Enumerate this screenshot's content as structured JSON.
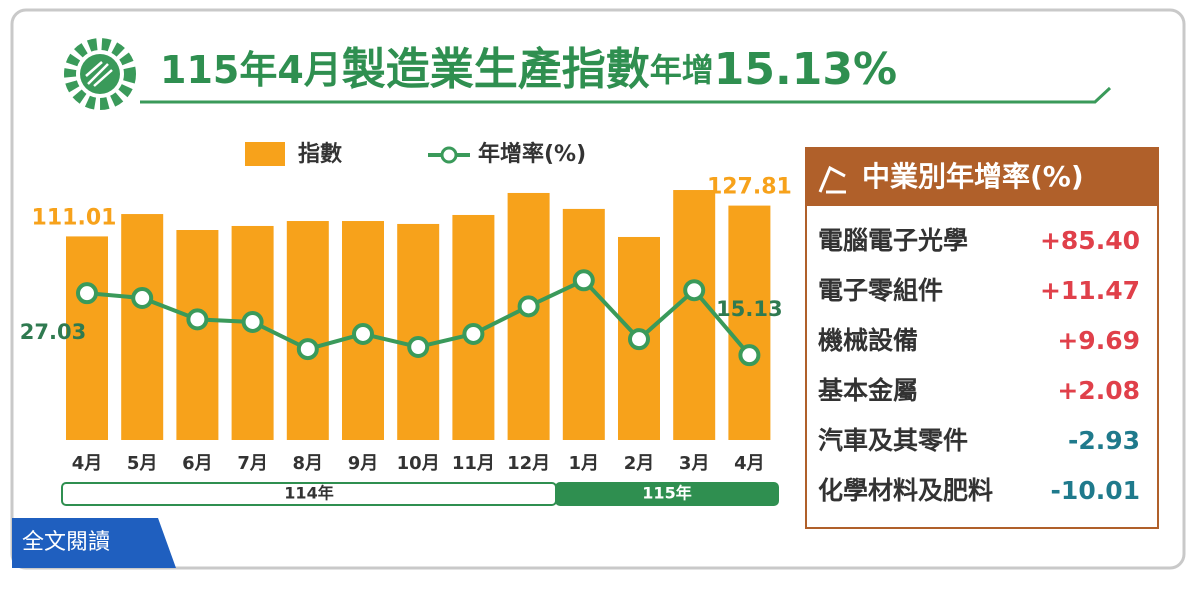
{
  "header": {
    "title_parts": [
      "115年4月",
      "製造業生產指數",
      "年增",
      "15.13%"
    ]
  },
  "chart_data": {
    "type": "bar-line",
    "categories": [
      "4月",
      "5月",
      "6月",
      "7月",
      "8月",
      "9月",
      "10月",
      "11月",
      "12月",
      "1月",
      "2月",
      "3月",
      "4月"
    ],
    "groups": [
      "114年",
      "115年"
    ],
    "series": [
      {
        "name": "指數",
        "type": "bar",
        "color": "#f7a21b",
        "values": [
          111.01,
          123.2,
          114.5,
          116.7,
          119.4,
          119.4,
          117.8,
          122.7,
          134.7,
          126.0,
          110.7,
          136.3,
          127.81
        ]
      },
      {
        "name": "年增率(%)",
        "type": "line",
        "color": "#3a9a5a",
        "values": [
          27.03,
          26.1,
          22.0,
          21.5,
          16.3,
          19.2,
          16.7,
          19.2,
          24.5,
          29.5,
          18.2,
          27.6,
          15.13
        ]
      }
    ]
  },
  "side_table": {
    "title": "中業別年增率(%)",
    "rows": [
      [
        "電腦電子光學",
        "+85.40"
      ],
      [
        "電子零組件",
        "+11.47"
      ],
      [
        "機械設備",
        "+9.69"
      ],
      [
        "基本金屬",
        "+2.08"
      ],
      [
        "汽車及其零件",
        "-2.93"
      ],
      [
        "化學材料及肥料",
        "-10.01"
      ]
    ]
  },
  "button": "全文閱讀"
}
